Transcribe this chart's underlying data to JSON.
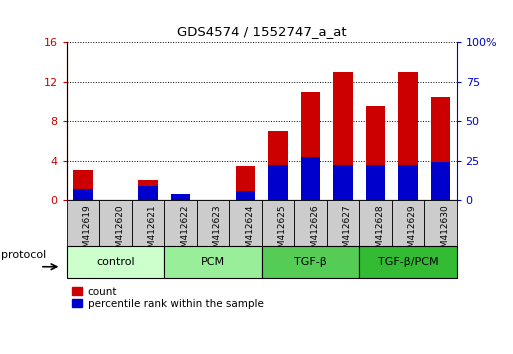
{
  "title": "GDS4574 / 1552747_a_at",
  "samples": [
    "GSM412619",
    "GSM412620",
    "GSM412621",
    "GSM412622",
    "GSM412623",
    "GSM412624",
    "GSM412625",
    "GSM412626",
    "GSM412627",
    "GSM412628",
    "GSM412629",
    "GSM412630"
  ],
  "count_values": [
    3.0,
    0.0,
    2.0,
    0.5,
    0.0,
    3.5,
    7.0,
    11.0,
    13.0,
    9.5,
    13.0,
    10.5
  ],
  "percentile_values_pct": [
    7.0,
    0.0,
    9.0,
    4.0,
    0.0,
    5.5,
    22.0,
    27.0,
    22.0,
    22.0,
    22.0,
    24.0
  ],
  "count_color": "#cc0000",
  "percentile_color": "#0000cc",
  "ylim_left": [
    0,
    16
  ],
  "ylim_right": [
    0,
    100
  ],
  "yticks_left": [
    0,
    4,
    8,
    12,
    16
  ],
  "yticks_right": [
    0,
    25,
    50,
    75,
    100
  ],
  "groups": [
    {
      "label": "control",
      "start": 0,
      "end": 3,
      "color": "#ccffcc"
    },
    {
      "label": "PCM",
      "start": 3,
      "end": 6,
      "color": "#99ee99"
    },
    {
      "label": "TGF-β",
      "start": 6,
      "end": 9,
      "color": "#55cc55"
    },
    {
      "label": "TGF-β/PCM",
      "start": 9,
      "end": 12,
      "color": "#33bb33"
    }
  ],
  "bar_width": 0.6,
  "sample_box_color": "#cccccc",
  "grid_color": "#000000",
  "background_color": "#ffffff"
}
